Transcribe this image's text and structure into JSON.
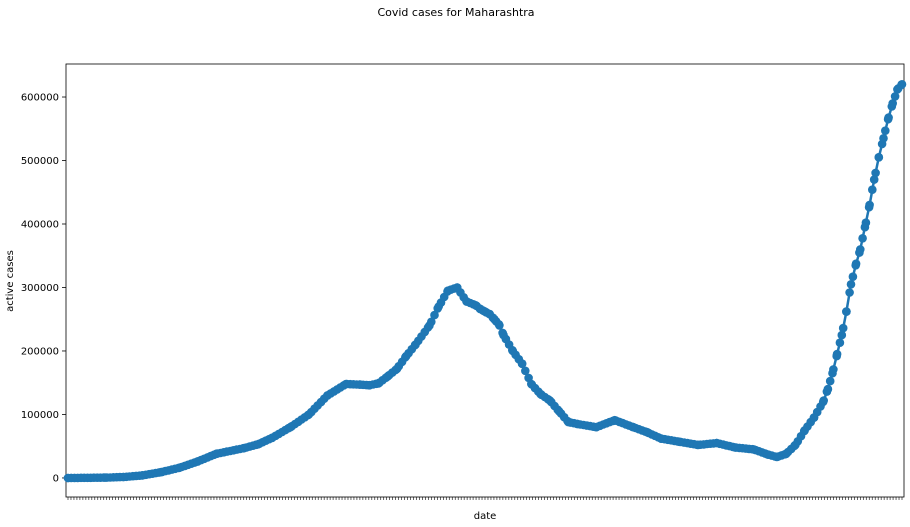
{
  "chart_data": {
    "type": "line",
    "title": "Covid cases for Maharashtra",
    "xlabel": "date",
    "ylabel": "active cases",
    "ylim": [
      -30000,
      652000
    ],
    "yticks": [
      0,
      100000,
      200000,
      300000,
      400000,
      500000,
      600000
    ],
    "ytick_labels": [
      "0",
      "100000",
      "200000",
      "300000",
      "400000",
      "500000",
      "600000"
    ],
    "xtick_labels_visible": false,
    "grid": false,
    "legend": "none",
    "series_color": "#1f77b4",
    "marker": "circle",
    "series": [
      {
        "x": [
          0,
          40,
          60,
          80,
          100,
          120,
          140,
          160,
          190,
          205,
          220,
          240,
          260,
          280,
          300,
          315,
          325,
          335,
          345,
          355,
          365,
          375,
          390,
          400,
          410,
          420,
          430,
          440,
          445,
          450,
          455,
          460,
          465,
          470,
          480,
          490,
          500,
          510,
          520,
          530,
          540,
          550,
          570,
          590,
          610,
          625,
          640,
          660,
          680,
          700,
          720,
          740,
          755,
          765,
          775,
          785,
          795,
          805,
          815,
          820,
          825,
          830,
          835,
          840,
          845,
          850,
          855,
          860,
          865,
          870,
          875,
          880,
          885,
          890,
          895,
          900
        ],
        "y": [
          0,
          500,
          1500,
          4000,
          9000,
          16000,
          26000,
          38000,
          47000,
          53000,
          63000,
          80000,
          100000,
          130000,
          148000,
          147000,
          146000,
          149000,
          160000,
          172000,
          192000,
          210000,
          240000,
          270000,
          295000,
          300000,
          278000,
          272000,
          266000,
          262000,
          258000,
          250000,
          242000,
          225000,
          200000,
          180000,
          148000,
          132000,
          122000,
          105000,
          88000,
          85000,
          80000,
          91000,
          80000,
          72000,
          62000,
          57000,
          52000,
          55000,
          48000,
          45000,
          37000,
          33000,
          38000,
          52000,
          75000,
          95000,
          120000,
          140000,
          165000,
          195000,
          225000,
          262000,
          305000,
          335000,
          360000,
          395000,
          430000,
          470000,
          505000,
          535000,
          565000,
          590000,
          612000,
          620000
        ]
      }
    ]
  }
}
